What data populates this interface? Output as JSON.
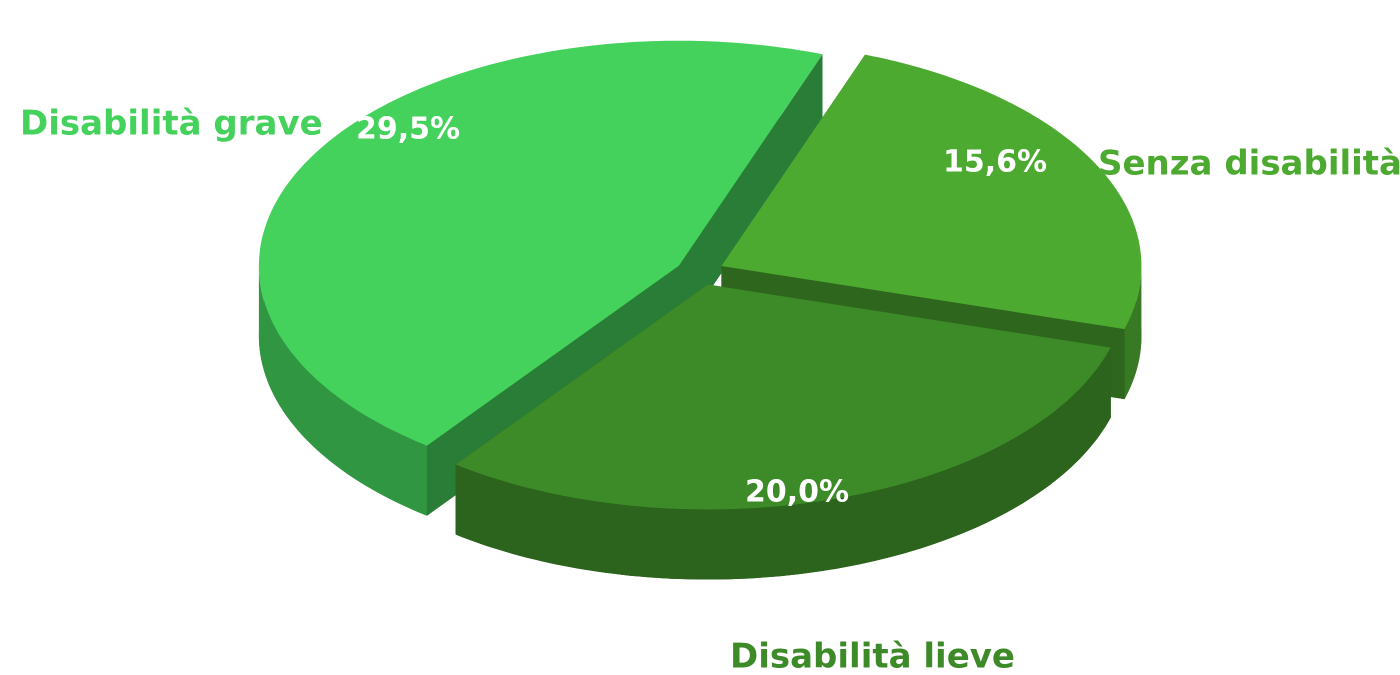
{
  "chart_data": {
    "type": "pie",
    "categories": [
      "Senza disabilità",
      "Disabilità lieve",
      "Disabilità grave"
    ],
    "values": [
      15.6,
      20.0,
      29.5
    ],
    "value_labels": [
      "15,6%",
      "20,0%",
      "29,5%"
    ],
    "colors": [
      "#4caa30",
      "#3d8a28",
      "#44d15c"
    ]
  }
}
